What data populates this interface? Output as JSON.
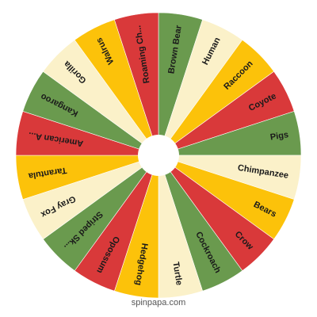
{
  "wheel": {
    "colors": {
      "green": "#6a9a4e",
      "cream": "#fbf1c9",
      "red": "#d9393a",
      "yellow": "#fcc20a",
      "hub": "#ffffff",
      "text": "#1a1a1a"
    },
    "segments": [
      {
        "label": "Brown Bear",
        "color": "green"
      },
      {
        "label": "Human",
        "color": "cream"
      },
      {
        "label": "Raccoon",
        "color": "yellow"
      },
      {
        "label": "Coyote",
        "color": "red"
      },
      {
        "label": "Pigs",
        "color": "green"
      },
      {
        "label": "Chimpanzee",
        "color": "cream"
      },
      {
        "label": "Bears",
        "color": "yellow"
      },
      {
        "label": "Crow",
        "color": "red"
      },
      {
        "label": "Cockroach",
        "color": "green"
      },
      {
        "label": "Turtle",
        "color": "cream"
      },
      {
        "label": "Hedgehog",
        "color": "yellow"
      },
      {
        "label": "Opossum",
        "color": "red"
      },
      {
        "label": "Striped Sk...",
        "color": "green"
      },
      {
        "label": "Gray Fox",
        "color": "cream"
      },
      {
        "label": "Tarantula",
        "color": "yellow"
      },
      {
        "label": "American A...",
        "color": "red"
      },
      {
        "label": "Kangaroo",
        "color": "green"
      },
      {
        "label": "Gorilla",
        "color": "cream"
      },
      {
        "label": "Walrus",
        "color": "yellow"
      },
      {
        "label": "Roaming Ch...",
        "color": "red"
      }
    ]
  },
  "footer": {
    "watermark": "spinpapa.com"
  }
}
